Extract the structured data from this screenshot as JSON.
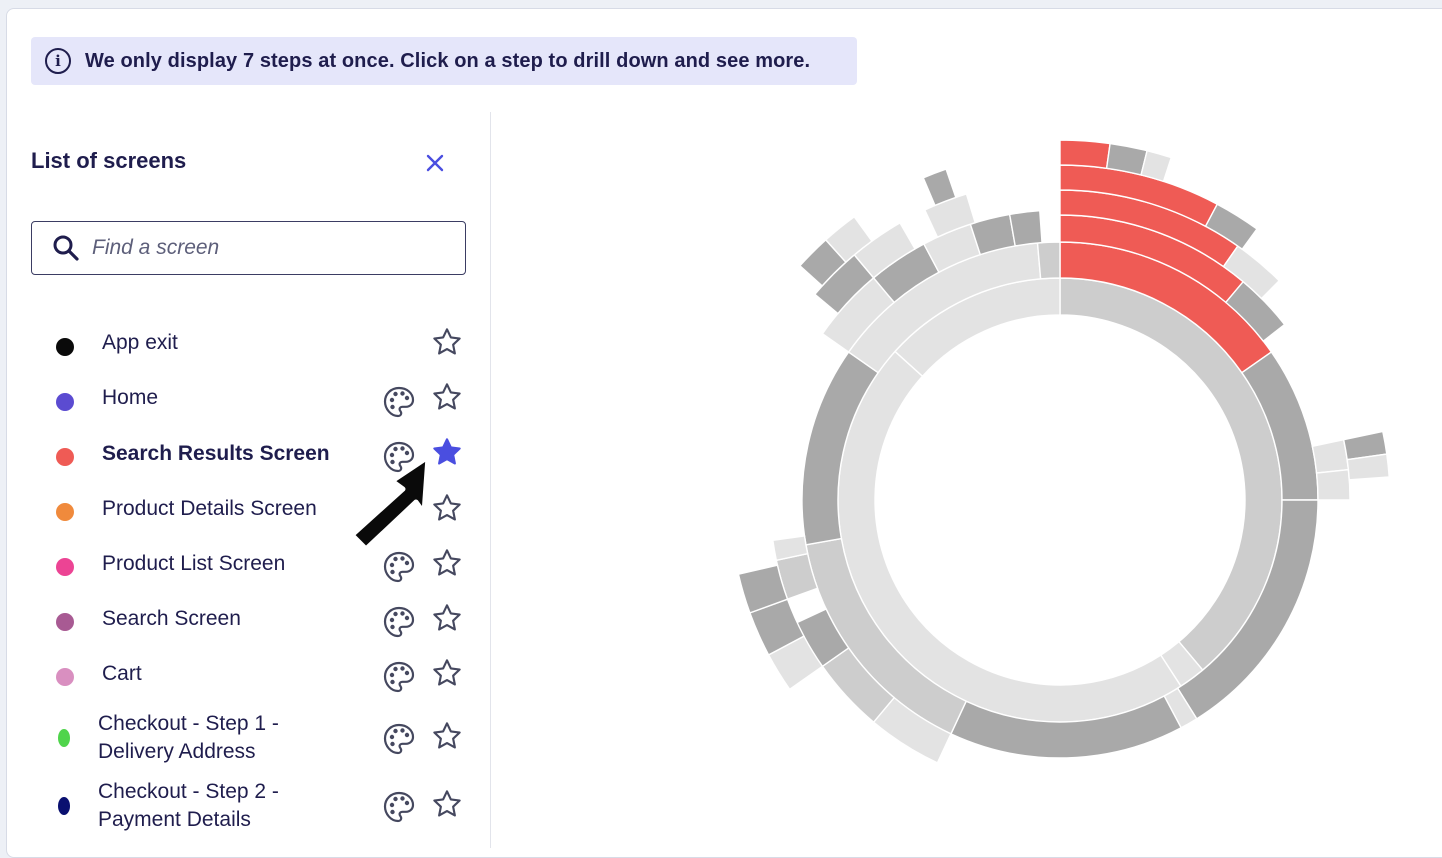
{
  "banner": {
    "text": "We only display 7 steps at once. Click on a step to drill down and see more."
  },
  "sidebar": {
    "title": "List of screens",
    "search": {
      "placeholder": "Find a screen",
      "value": ""
    },
    "items": [
      {
        "label": "App exit",
        "color": "#0a0a0a",
        "bold": false,
        "palette": false,
        "starred": false
      },
      {
        "label": "Home",
        "color": "#5b4bd1",
        "bold": false,
        "palette": true,
        "starred": false
      },
      {
        "label": "Search Results Screen",
        "color": "#ef5b55",
        "bold": true,
        "palette": true,
        "starred": true
      },
      {
        "label": "Product Details Screen",
        "color": "#f08a3c",
        "bold": false,
        "palette": false,
        "starred": false
      },
      {
        "label": "Product List Screen",
        "color": "#ec4494",
        "bold": false,
        "palette": true,
        "starred": false
      },
      {
        "label": "Search Screen",
        "color": "#a85a93",
        "bold": false,
        "palette": true,
        "starred": false
      },
      {
        "label": "Cart",
        "color": "#d98fc0",
        "bold": false,
        "palette": true,
        "starred": false
      },
      {
        "label_line1": "Checkout - Step 1 -",
        "label_line2": "Delivery Address",
        "color": "#4fd44b",
        "bold": false,
        "palette": true,
        "starred": false
      },
      {
        "label_line1": "Checkout - Step 2 -",
        "label_line2": "Payment Details",
        "color": "#0a1070",
        "bold": false,
        "palette": true,
        "starred": false
      }
    ]
  },
  "colors": {
    "accent": "#4a4ee0",
    "highlight": "#ef5b55",
    "gray_light": "#e3e3e3",
    "gray_mid": "#cdcdcd",
    "gray_dark": "#a9a9a9"
  },
  "icons": {
    "info": "info-icon",
    "close": "close-icon",
    "search": "search-icon",
    "palette": "palette-icon",
    "star": "star-icon"
  }
}
